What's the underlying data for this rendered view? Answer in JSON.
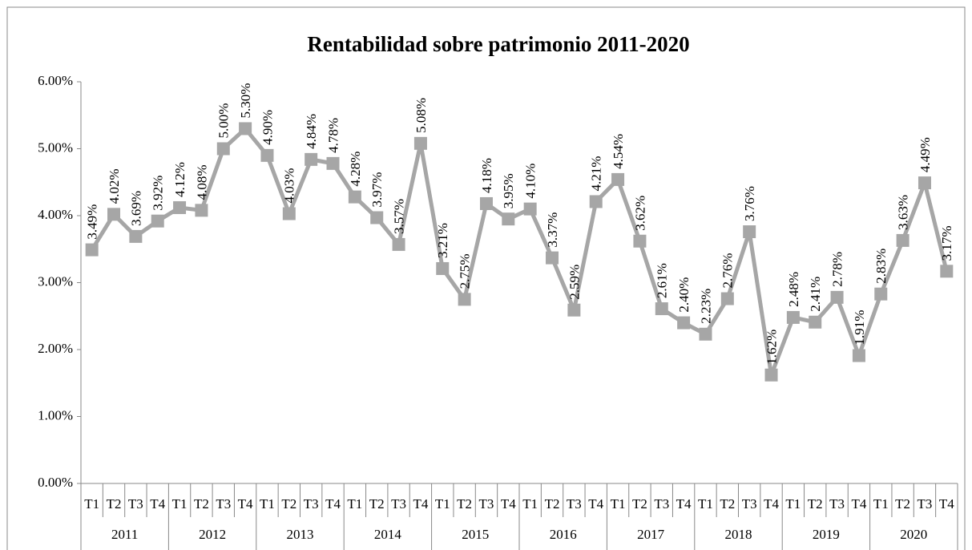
{
  "chart_data": {
    "type": "line",
    "title": "Rentabilidad sobre  patrimonio 2011-2020",
    "categories": [
      "T1",
      "T2",
      "T3",
      "T4",
      "T1",
      "T2",
      "T3",
      "T4",
      "T1",
      "T2",
      "T3",
      "T4",
      "T1",
      "T2",
      "T3",
      "T4",
      "T1",
      "T2",
      "T3",
      "T4",
      "T1",
      "T2",
      "T3",
      "T4",
      "T1",
      "T2",
      "T3",
      "T4",
      "T1",
      "T2",
      "T3",
      "T4",
      "T1",
      "T2",
      "T3",
      "T4",
      "T1",
      "T2",
      "T3",
      "T4"
    ],
    "category_groups": [
      "2011",
      "2012",
      "2013",
      "2014",
      "2015",
      "2016",
      "2017",
      "2018",
      "2019",
      "2020"
    ],
    "series": [
      {
        "name": "Rentabilidad sobre patrimonio",
        "color": "#a6a6a6",
        "values": [
          3.49,
          4.02,
          3.69,
          3.92,
          4.12,
          4.08,
          5.0,
          5.3,
          4.9,
          4.03,
          4.84,
          4.78,
          4.28,
          3.97,
          3.57,
          5.08,
          3.21,
          2.75,
          4.18,
          3.95,
          4.1,
          3.37,
          2.59,
          4.21,
          4.54,
          3.62,
          2.61,
          2.4,
          2.23,
          2.76,
          3.76,
          1.62,
          2.48,
          2.41,
          2.78,
          1.91,
          2.83,
          3.63,
          4.49,
          3.17
        ],
        "value_labels": [
          "3.49%",
          "4.02%",
          "3.69%",
          "3.92%",
          "4.12%",
          "4.08%",
          "5.00%",
          "5.30%",
          "4.90%",
          "4.03%",
          "4.84%",
          "4.78%",
          "4.28%",
          "3.97%",
          "3.57%",
          "5.08%",
          "3.21%",
          "2.75%",
          "4.18%",
          "3.95%",
          "4.10%",
          "3.37%",
          "2.59%",
          "4.21%",
          "4.54%",
          "3.62%",
          "2.61%",
          "2.40%",
          "2.23%",
          "2.76%",
          "3.76%",
          "1.62%",
          "2.48%",
          "2.41%",
          "2.78%",
          "1.91%",
          "2.83%",
          "3.63%",
          "4.49%",
          "3.17%"
        ]
      }
    ],
    "ylim": [
      0,
      6
    ],
    "yticks": [
      {
        "value": 0,
        "label": "0.00%"
      },
      {
        "value": 1,
        "label": "1.00%"
      },
      {
        "value": 2,
        "label": "2.00%"
      },
      {
        "value": 3,
        "label": "3.00%"
      },
      {
        "value": 4,
        "label": "4.00%"
      },
      {
        "value": 5,
        "label": "5.00%"
      },
      {
        "value": 6,
        "label": "6.00%"
      }
    ],
    "grid": false
  }
}
